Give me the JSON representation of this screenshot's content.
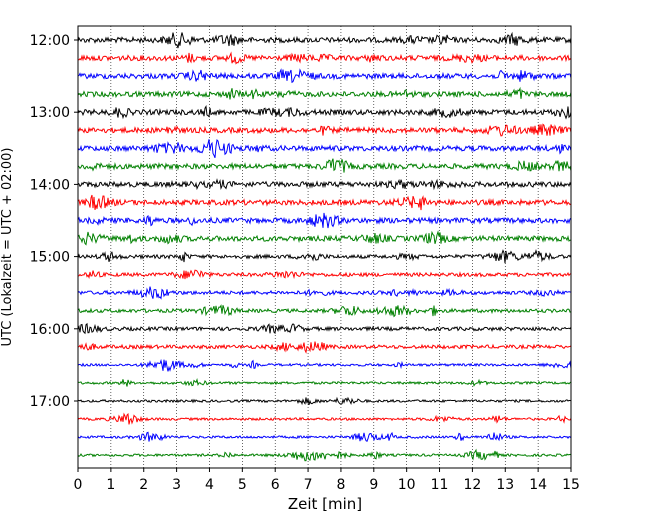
{
  "chart_data": {
    "type": "line",
    "xlabel": "Zeit  [min]",
    "ylabel": "UTC (Lokalzeit = UTC + 02:00)",
    "xlim": [
      0,
      15
    ],
    "x_ticks": [
      "0",
      "1",
      "2",
      "3",
      "4",
      "5",
      "6",
      "7",
      "8",
      "9",
      "10",
      "11",
      "12",
      "13",
      "14",
      "15"
    ],
    "y_ticks": [
      "12:00",
      "13:00",
      "14:00",
      "15:00",
      "16:00",
      "17:00"
    ],
    "grid": {
      "x": true,
      "y": false,
      "style": "dotted"
    },
    "trace_interval_minutes": 15,
    "trace_start": "12:00",
    "trace_count": 24,
    "trace_colors": [
      "#000000",
      "#ff0000",
      "#0000ff",
      "#008000"
    ]
  }
}
